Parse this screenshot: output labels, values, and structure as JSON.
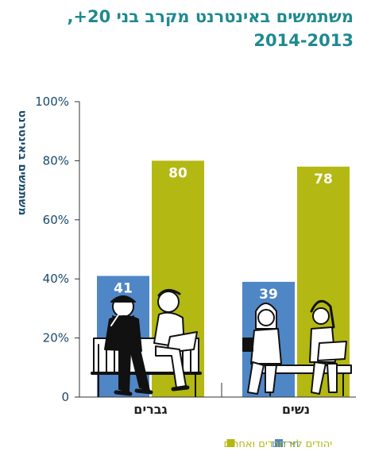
{
  "title": {
    "line1": "משתמשים באינטרנט מקרב בני 20+,",
    "line2": "2014-2013"
  },
  "colors": {
    "title": "#1f8a8f",
    "axis_text": "#1b4a6b",
    "haredim": "#4f86c6",
    "non_haredim": "#b3b812",
    "axis_line": "#333333"
  },
  "chart_data": {
    "type": "bar",
    "title": "משתמשים באינטרנט מקרב בני 20+, 2014-2013",
    "ylabel": "משתמשים באינטרנט",
    "ylim": [
      0,
      100
    ],
    "yticks": [
      "0",
      "20%",
      "40%",
      "60%",
      "80%",
      "100%"
    ],
    "ytick_values": [
      0,
      20,
      40,
      60,
      80,
      100
    ],
    "categories": [
      "גברים",
      "נשים"
    ],
    "series": [
      {
        "name": "חרדים",
        "values": [
          41,
          39
        ],
        "color": "#4f86c6"
      },
      {
        "name": "יהודים לא־חרדים ואחרים",
        "values": [
          80,
          78
        ],
        "color": "#b3b812"
      }
    ],
    "data_labels": true,
    "legend": "bottom",
    "grid": false
  }
}
